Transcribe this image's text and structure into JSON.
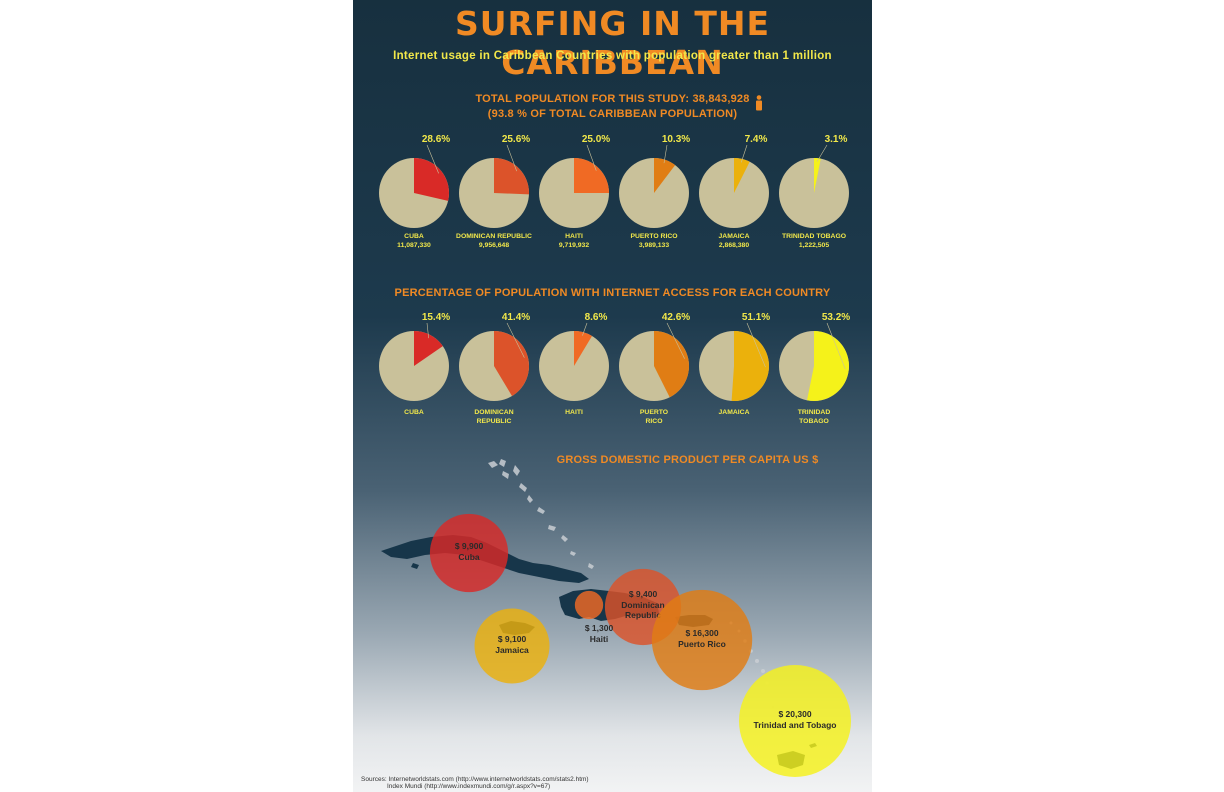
{
  "header": {
    "title": "SURFING IN THE CARIBBEAN",
    "subtitle": "Internet usage in Caribbean Countries with population greater than 1 million"
  },
  "population_section": {
    "line1": "TOTAL POPULATION FOR THIS STUDY: 38,843,928",
    "line2": "(93.8 % OF TOTAL CARIBBEAN POPULATION)"
  },
  "internet_section": {
    "title": "PERCENTAGE OF POPULATION WITH INTERNET ACCESS FOR EACH COUNTRY"
  },
  "gdp_section": {
    "title": "GROSS DOMESTIC PRODUCT PER CAPITA US $"
  },
  "sources": {
    "line1": "Sources: Internetworldstats.com (http://www.internetworldstats.com/stats2.htm)",
    "line2": "Index Mundi (http://www.indexmundi.com/g/r.aspx?v=67)"
  },
  "colors": {
    "pie_base": "#c9c19a",
    "title": "#f08a24",
    "label": "#f2e84a",
    "cuba": "#d92a27",
    "dominican_republic": "#dc532a",
    "haiti": "#f06a24",
    "puerto_rico": "#e07d14",
    "jamaica": "#ebb10c",
    "trinidad_tobago": "#f5f21a",
    "land": "#17364a"
  },
  "chart_data": [
    {
      "type": "pie",
      "title": "TOTAL POPULATION FOR THIS STUDY: 38,843,928",
      "items": [
        {
          "label": "CUBA",
          "value_text": "11,087,330",
          "pct": 28.6,
          "pct_text": "28.6%",
          "color": "#d92a27"
        },
        {
          "label": "DOMINICAN REPUBLIC",
          "value_text": "9,956,648",
          "pct": 25.6,
          "pct_text": "25.6%",
          "color": "#dc532a"
        },
        {
          "label": "HAITI",
          "value_text": "9,719,932",
          "pct": 25.0,
          "pct_text": "25.0%",
          "color": "#f06a24"
        },
        {
          "label": "PUERTO RICO",
          "value_text": "3,989,133",
          "pct": 10.3,
          "pct_text": "10.3%",
          "color": "#e07d14"
        },
        {
          "label": "JAMAICA",
          "value_text": "2,868,380",
          "pct": 7.4,
          "pct_text": "7.4%",
          "color": "#ebb10c"
        },
        {
          "label": "TRINIDAD TOBAGO",
          "value_text": "1,222,505",
          "pct": 3.1,
          "pct_text": "3.1%",
          "color": "#f5f21a"
        }
      ]
    },
    {
      "type": "pie",
      "title": "PERCENTAGE OF POPULATION WITH INTERNET ACCESS FOR EACH COUNTRY",
      "items": [
        {
          "label_lines": [
            "CUBA"
          ],
          "pct": 15.4,
          "pct_text": "15.4%",
          "color": "#d92a27"
        },
        {
          "label_lines": [
            "DOMINICAN",
            "REPUBLIC"
          ],
          "pct": 41.4,
          "pct_text": "41.4%",
          "color": "#dc532a"
        },
        {
          "label_lines": [
            "HAITI"
          ],
          "pct": 8.6,
          "pct_text": "8.6%",
          "color": "#f06a24"
        },
        {
          "label_lines": [
            "PUERTO",
            "RICO"
          ],
          "pct": 42.6,
          "pct_text": "42.6%",
          "color": "#e07d14"
        },
        {
          "label_lines": [
            "JAMAICA"
          ],
          "pct": 51.1,
          "pct_text": "51.1%",
          "color": "#ebb10c"
        },
        {
          "label_lines": [
            "TRINIDAD",
            "TOBAGO"
          ],
          "pct": 53.2,
          "pct_text": "53.2%",
          "color": "#f5f21a"
        }
      ]
    },
    {
      "type": "bubble-map",
      "title": "GROSS DOMESTIC PRODUCT PER CAPITA US $",
      "items": [
        {
          "key": "cuba",
          "value": 9900,
          "value_text": "$ 9,900",
          "name": "Cuba",
          "color": "#d92a27"
        },
        {
          "key": "dominican_republic",
          "value": 9400,
          "value_text": "$ 9,400",
          "name_lines": [
            "Dominican",
            "Republic"
          ],
          "color": "#dc532a"
        },
        {
          "key": "haiti",
          "value": 1300,
          "value_text": "$ 1,300",
          "name": "Haiti",
          "color": "#f06a24"
        },
        {
          "key": "puerto_rico",
          "value": 16300,
          "value_text": "$ 16,300",
          "name": "Puerto Rico",
          "color": "#e07d14"
        },
        {
          "key": "jamaica",
          "value": 9100,
          "value_text": "$ 9,100",
          "name": "Jamaica",
          "color": "#ebb10c"
        },
        {
          "key": "trinidad_tobago",
          "value": 20300,
          "value_text": "$ 20,300",
          "name": "Trinidad and Tobago",
          "color": "#f5f21a"
        }
      ]
    }
  ]
}
